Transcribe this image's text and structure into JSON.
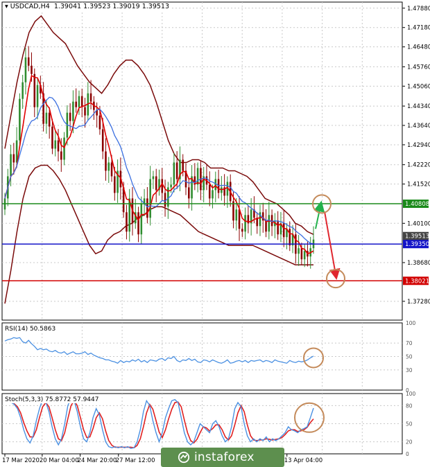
{
  "header": {
    "symbol_tf": "USDCAD,H4",
    "ohlc": "1.39041 1.39523 1.39019 1.39513",
    "rsi_label": "RSI(14) 50.5863",
    "stoch_label": "Stoch(5,3,3) 75.8772 57.9447"
  },
  "watermark": {
    "text": "instaforex"
  },
  "colors": {
    "bull": "#2e8b2e",
    "bear": "#8b0000",
    "ma_fast": "#e00000",
    "ma_slow": "#3b6fe0",
    "bb": "#7a0a0a",
    "support": "#1414c8",
    "resistance": "#1a8a1a",
    "target": "#d20000",
    "circle": "#c48a5a",
    "arrow_up": "#22b24c",
    "arrow_down": "#e0262e",
    "rsi_line": "#4a90e2",
    "stoch_main": "#4a90e2",
    "stoch_signal": "#e02020"
  },
  "chart_data": [
    {
      "type": "candlestick",
      "title": "USDCAD,H4",
      "ylim": [
        1.366,
        1.481
      ],
      "y_ticks": [
        "1.47880",
        "1.47180",
        "1.46480",
        "1.45760",
        "1.45060",
        "1.44340",
        "1.43640",
        "1.42940",
        "1.42220",
        "1.41520",
        "1.40100",
        "1.38680",
        "1.37280"
      ],
      "x_ticks": [
        "17 Mar 2020",
        "20 Mar 04:00",
        "24 Mar 20:00",
        "27 Mar 12:00",
        "13 Apr 04:00"
      ],
      "price_labels": [
        {
          "value": 1.40808,
          "text": "1.40808",
          "role": "resistance"
        },
        {
          "value": 1.39513,
          "text": "1.39513",
          "role": "current"
        },
        {
          "value": 1.3935,
          "text": "1.39350",
          "role": "support"
        },
        {
          "value": 1.38021,
          "text": "1.38021",
          "role": "target"
        }
      ],
      "close": [
        1.41,
        1.418,
        1.426,
        1.423,
        1.431,
        1.446,
        1.452,
        1.461,
        1.458,
        1.455,
        1.443,
        1.451,
        1.448,
        1.437,
        1.441,
        1.436,
        1.428,
        1.431,
        1.427,
        1.424,
        1.432,
        1.441,
        1.438,
        1.445,
        1.443,
        1.447,
        1.443,
        1.44,
        1.448,
        1.445,
        1.442,
        1.44,
        1.435,
        1.427,
        1.42,
        1.423,
        1.418,
        1.412,
        1.42,
        1.414,
        1.405,
        1.398,
        1.41,
        1.401,
        1.405,
        1.397,
        1.408,
        1.41,
        1.403,
        1.417,
        1.418,
        1.413,
        1.417,
        1.412,
        1.407,
        1.414,
        1.415,
        1.423,
        1.417,
        1.424,
        1.42,
        1.414,
        1.41,
        1.418,
        1.415,
        1.421,
        1.413,
        1.418,
        1.415,
        1.41,
        1.413,
        1.417,
        1.412,
        1.414,
        1.411,
        1.416,
        1.409,
        1.402,
        1.406,
        1.399,
        1.398,
        1.404,
        1.401,
        1.406,
        1.403,
        1.4,
        1.405,
        1.402,
        1.398,
        1.404,
        1.4,
        1.402,
        1.397,
        1.401,
        1.396,
        1.399,
        1.393,
        1.397,
        1.39,
        1.392,
        1.388,
        1.391,
        1.389,
        1.392,
        1.39513
      ],
      "upper_band": [
        1.428,
        1.44,
        1.452,
        1.462,
        1.47,
        1.474,
        1.476,
        1.473,
        1.47,
        1.468,
        1.466,
        1.462,
        1.458,
        1.455,
        1.452,
        1.45,
        1.448,
        1.451,
        1.455,
        1.458,
        1.46,
        1.46,
        1.458,
        1.455,
        1.451,
        1.445,
        1.438,
        1.431,
        1.426,
        1.423,
        1.423,
        1.424,
        1.424,
        1.423,
        1.421,
        1.421,
        1.421,
        1.42,
        1.42,
        1.419,
        1.418,
        1.416,
        1.413,
        1.41,
        1.409,
        1.408,
        1.406,
        1.404,
        1.401,
        1.4,
        1.398,
        1.397
      ],
      "lower_band": [
        1.372,
        1.384,
        1.398,
        1.41,
        1.418,
        1.421,
        1.422,
        1.422,
        1.42,
        1.417,
        1.413,
        1.408,
        1.403,
        1.398,
        1.393,
        1.39,
        1.391,
        1.395,
        1.397,
        1.398,
        1.4,
        1.401,
        1.403,
        1.404,
        1.406,
        1.407,
        1.407,
        1.406,
        1.405,
        1.404,
        1.402,
        1.4,
        1.398,
        1.397,
        1.396,
        1.395,
        1.394,
        1.393,
        1.393,
        1.393,
        1.393,
        1.393,
        1.392,
        1.391,
        1.39,
        1.389,
        1.388,
        1.387,
        1.386,
        1.386,
        1.386,
        1.386
      ],
      "annotations": {
        "arrow_up": {
          "from": 1.399,
          "to": 1.408
        },
        "arrow_down": {
          "from": 1.408,
          "to": 1.381
        },
        "circles": [
          1.408,
          1.381
        ]
      }
    },
    {
      "type": "line",
      "title": "RSI(14) 50.5863",
      "ylim": [
        0,
        100
      ],
      "y_ticks": [
        "100",
        "70",
        "50",
        "30",
        "0"
      ],
      "values": [
        73,
        75,
        76,
        78,
        77,
        78,
        72,
        70,
        74,
        69,
        65,
        60,
        62,
        60,
        61,
        58,
        57,
        59,
        56,
        55,
        57,
        53,
        55,
        57,
        54,
        54,
        55,
        57,
        53,
        55,
        52,
        50,
        48,
        47,
        45,
        45,
        43,
        42,
        40,
        44,
        41,
        43,
        42,
        45,
        43,
        46,
        42,
        44,
        41,
        45,
        44,
        43,
        46,
        47,
        44,
        48,
        47,
        50,
        44,
        42,
        45,
        44,
        47,
        44,
        46,
        42,
        41,
        45,
        44,
        42,
        45,
        43,
        41,
        40,
        42,
        45,
        40,
        41,
        43,
        44,
        42,
        44,
        41,
        44,
        43,
        44,
        45,
        42,
        44,
        43,
        41,
        45,
        43,
        42,
        41,
        40,
        44,
        42,
        41,
        43,
        42,
        43,
        45,
        48,
        50.5863
      ]
    },
    {
      "type": "line",
      "title": "Stoch(5,3,3) 75.8772 57.9447",
      "ylim": [
        0,
        100
      ],
      "y_ticks": [
        "100",
        "80",
        "50",
        "20",
        "0"
      ],
      "series": [
        {
          "name": "Stoch",
          "values": [
            92,
            88,
            85,
            82,
            75,
            60,
            40,
            25,
            18,
            30,
            55,
            75,
            90,
            86,
            70,
            45,
            25,
            15,
            25,
            50,
            80,
            92,
            88,
            70,
            45,
            25,
            20,
            35,
            60,
            75,
            65,
            40,
            20,
            12,
            10,
            12,
            10,
            12,
            10,
            12,
            9,
            10,
            20,
            40,
            70,
            88,
            80,
            55,
            35,
            20,
            35,
            60,
            75,
            88,
            90,
            85,
            60,
            35,
            20,
            15,
            20,
            35,
            50,
            45,
            40,
            35,
            50,
            55,
            45,
            30,
            20,
            25,
            45,
            75,
            85,
            78,
            50,
            30,
            20,
            25,
            20,
            25,
            22,
            28,
            20,
            25,
            22,
            25,
            30,
            35,
            45,
            40,
            38,
            35,
            40,
            42,
            45,
            60,
            75.8772
          ]
        },
        {
          "name": "Signal",
          "values": [
            90,
            88,
            86,
            83,
            78,
            68,
            52,
            38,
            28,
            28,
            40,
            60,
            78,
            85,
            78,
            60,
            40,
            25,
            22,
            35,
            58,
            80,
            88,
            80,
            60,
            40,
            27,
            28,
            42,
            60,
            68,
            58,
            38,
            22,
            14,
            11,
            11,
            11,
            11,
            11,
            11,
            10,
            14,
            25,
            45,
            68,
            82,
            74,
            55,
            36,
            27,
            40,
            58,
            74,
            85,
            86,
            78,
            56,
            35,
            22,
            18,
            24,
            35,
            45,
            43,
            38,
            42,
            48,
            48,
            40,
            28,
            23,
            30,
            48,
            68,
            80,
            70,
            48,
            30,
            23,
            22,
            23,
            23,
            25,
            24,
            23,
            24,
            25,
            27,
            32,
            38,
            40,
            40,
            37,
            38,
            40,
            44,
            52,
            57.9447
          ]
        }
      ]
    }
  ]
}
